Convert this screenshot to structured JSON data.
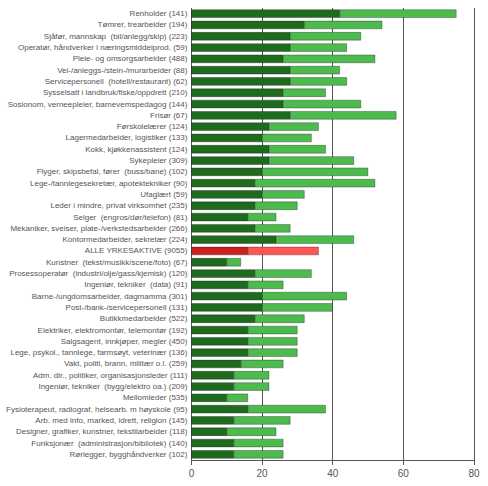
{
  "chart_data": {
    "type": "bar",
    "orientation": "horizontal",
    "stacked": true,
    "grid": true,
    "categories": [
      "Renholder (141)",
      "Tømrer, trearbeider (194)",
      "Sjåfør, mannskap  (bil/anlegg/skip) (223)",
      "Operatør, håndverker i næringsmiddelprod. (59)",
      "Pleie- og omsorgsarbeider (488)",
      "Vei-/anleggs-/stein-/murarbeider (88)",
      "Servicepersonell  (hotell/restaurant) (62)",
      "Sysselsatt i landbruk/fiske/oppdrett (210)",
      "Sosionom, verneepleier, barnevemspedagog (144)",
      "Frisør (67)",
      "Førskolelærer (124)",
      "Lagermedarbeider, logistiker (133)",
      "Kokk, kjøkkenassistent (124)",
      "Sykepleier (309)",
      "Flyger, skipsbefal, fører  (buss/bane) (102)",
      "Lege-/tannlegesekretær, apotektekniker (90)",
      "Ufaglært (59)",
      "Leder i mindre, privat virksomhet (235)",
      "Selger  (engros/dør/telefon) (81)",
      "Mekaniker, sveiser, plate-/verkstedsarbeider (266)",
      "Kontormedarbeider, sekretær (224)",
      "ALLE YRKESAKTIVE (9055)",
      "Kunstner  (tekst/musikk/scene/foto) (67)",
      "Prosessoperatør  (industri/olje/gass/kjemisk) (120)",
      "Ingeniør, tekniker  (data) (91)",
      "Barne-/ungdomsarbeider, dagmamma (301)",
      "Post-/bank-/servicepersonell (131)",
      "Butikkmedarbeider (522)",
      "Elektriker, elektromontør, telemontør (192)",
      "Salgsagent, innkjøper, megler (450)",
      "Lege, psykol., tannlege, farmsøyt, veterinær (136)",
      "Vakt, politi, brann, militær o.l. (259)",
      "Adm. dir., politiker, organisasjonsleder (111)",
      "Ingeniør, tekniker  (bygg/elektro oa.) (209)",
      "Mellomleder (535)",
      "Fysioterapeut, radiograf, helsearb. m høyskole (95)",
      "Arb. med info, marked, idrett, religion (145)",
      "Designer, grafiker, kunstner, tekstilarbeider (118)",
      "Funksjonær  (administrasjon/bibliotek) (140)",
      "Rørlegger, bygghåndverker (102)"
    ],
    "series": [
      {
        "values": [
          42,
          32,
          28,
          28,
          26,
          28,
          28,
          26,
          26,
          28,
          22,
          20,
          22,
          22,
          20,
          18,
          20,
          18,
          16,
          18,
          24,
          16,
          10,
          18,
          16,
          20,
          20,
          18,
          16,
          16,
          16,
          14,
          12,
          12,
          10,
          16,
          12,
          10,
          12,
          12
        ],
        "colors": [
          "#1e6b1e",
          "#1e6b1e",
          "#1e6b1e",
          "#1e6b1e",
          "#1e6b1e",
          "#1e6b1e",
          "#1e6b1e",
          "#1e6b1e",
          "#1e6b1e",
          "#1e6b1e",
          "#1e6b1e",
          "#1e6b1e",
          "#1e6b1e",
          "#1e6b1e",
          "#1e6b1e",
          "#1e6b1e",
          "#1e6b1e",
          "#1e6b1e",
          "#1e6b1e",
          "#1e6b1e",
          "#1e6b1e",
          "#cc2020",
          "#1e6b1e",
          "#1e6b1e",
          "#1e6b1e",
          "#1e6b1e",
          "#1e6b1e",
          "#1e6b1e",
          "#1e6b1e",
          "#1e6b1e",
          "#1e6b1e",
          "#1e6b1e",
          "#1e6b1e",
          "#1e6b1e",
          "#1e6b1e",
          "#1e6b1e",
          "#1e6b1e",
          "#1e6b1e",
          "#1e6b1e",
          "#1e6b1e"
        ]
      },
      {
        "values": [
          33,
          22,
          20,
          16,
          26,
          14,
          16,
          12,
          22,
          30,
          14,
          14,
          16,
          24,
          30,
          34,
          12,
          12,
          8,
          10,
          22,
          20,
          4,
          16,
          10,
          24,
          20,
          14,
          14,
          14,
          14,
          12,
          10,
          10,
          6,
          22,
          16,
          14,
          14,
          14
        ],
        "colors": [
          "#4dba4d",
          "#4dba4d",
          "#4dba4d",
          "#4dba4d",
          "#4dba4d",
          "#4dba4d",
          "#4dba4d",
          "#4dba4d",
          "#4dba4d",
          "#4dba4d",
          "#4dba4d",
          "#4dba4d",
          "#4dba4d",
          "#4dba4d",
          "#4dba4d",
          "#4dba4d",
          "#4dba4d",
          "#4dba4d",
          "#4dba4d",
          "#4dba4d",
          "#4dba4d",
          "#ff5555",
          "#4dba4d",
          "#4dba4d",
          "#4dba4d",
          "#4dba4d",
          "#4dba4d",
          "#4dba4d",
          "#4dba4d",
          "#4dba4d",
          "#4dba4d",
          "#4dba4d",
          "#4dba4d",
          "#4dba4d",
          "#4dba4d",
          "#4dba4d",
          "#4dba4d",
          "#4dba4d",
          "#4dba4d",
          "#4dba4d"
        ]
      }
    ],
    "xlim": [
      0,
      80
    ],
    "xticks": [
      0,
      20,
      40,
      60,
      80
    ]
  }
}
